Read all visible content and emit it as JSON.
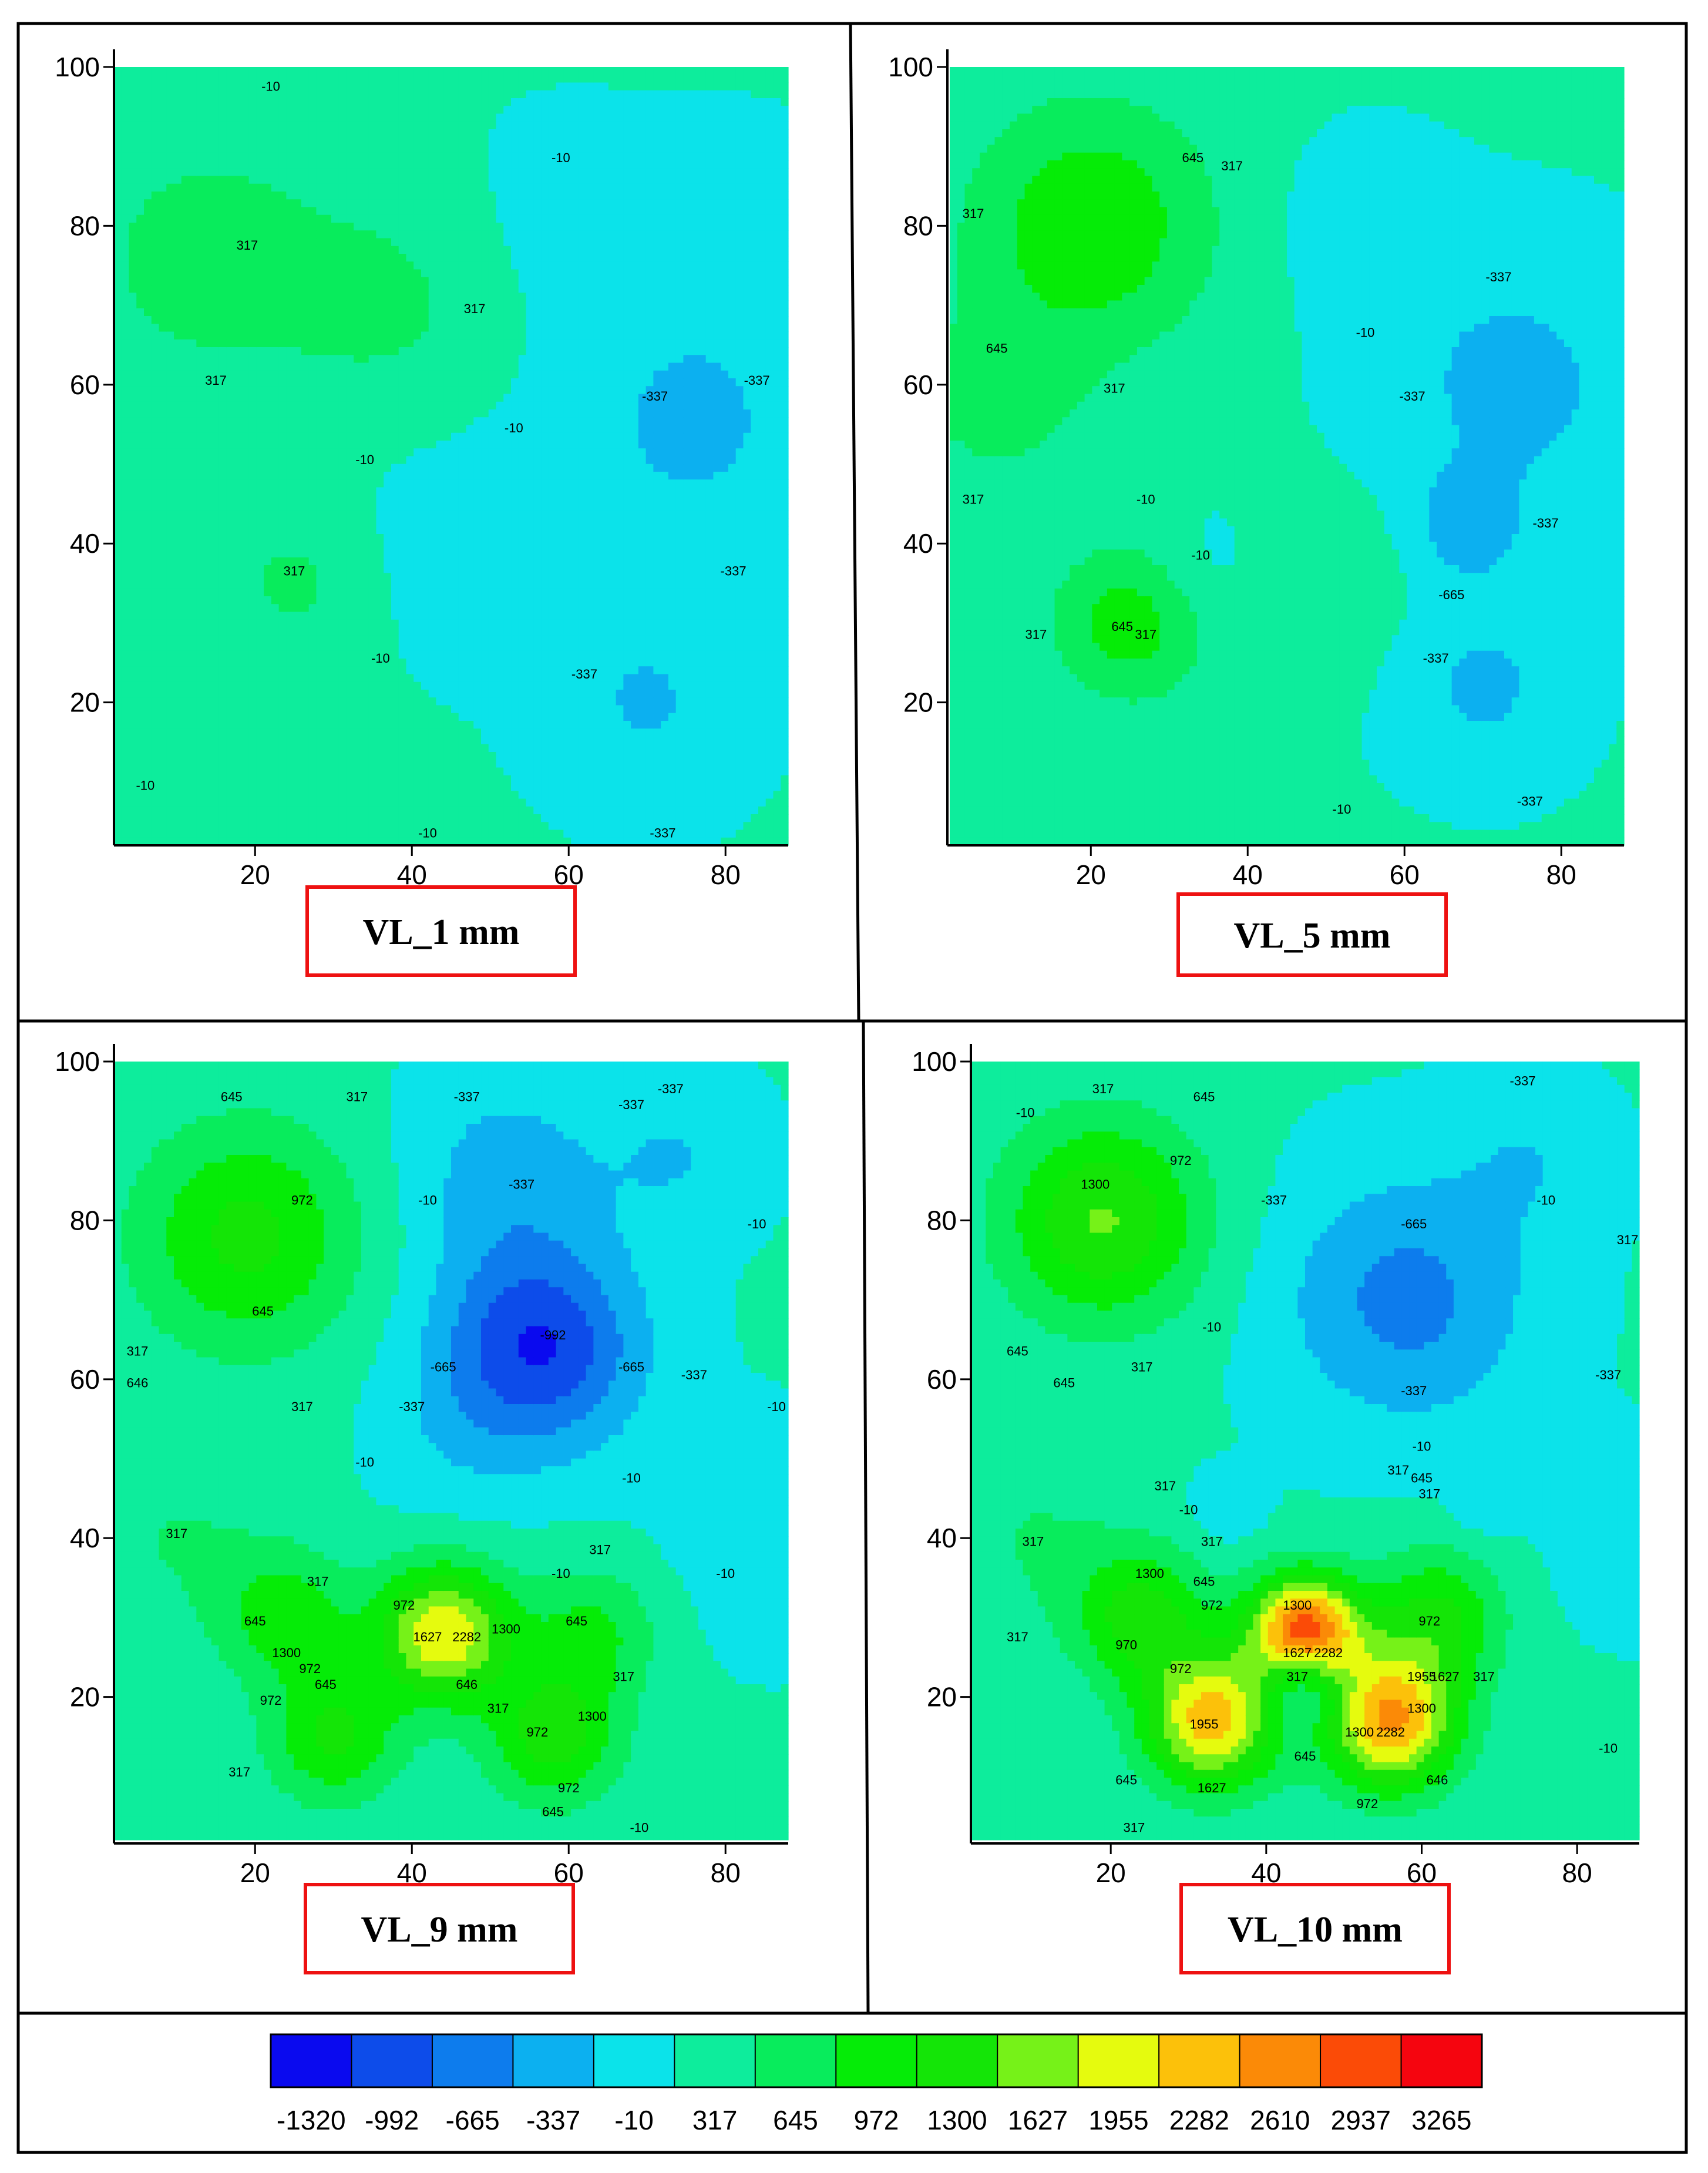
{
  "chart_data": [
    {
      "type": "heatmap",
      "title": "VL_1 mm",
      "x_ticks": [
        20,
        40,
        60,
        80
      ],
      "y_ticks": [
        20,
        40,
        60,
        80,
        100
      ],
      "xlim": [
        2,
        88
      ],
      "ylim": [
        2,
        100
      ],
      "contour_labels": [
        {
          "text": "-10",
          "x": 22,
          "y": 97
        },
        {
          "text": "-10",
          "x": 59,
          "y": 88
        },
        {
          "text": "317",
          "x": 19,
          "y": 77
        },
        {
          "text": "317",
          "x": 48,
          "y": 69
        },
        {
          "text": "317",
          "x": 15,
          "y": 60
        },
        {
          "text": "-337",
          "x": 71,
          "y": 58
        },
        {
          "text": "-337",
          "x": 84,
          "y": 60
        },
        {
          "text": "-10",
          "x": 53,
          "y": 54
        },
        {
          "text": "-10",
          "x": 34,
          "y": 50
        },
        {
          "text": "317",
          "x": 25,
          "y": 36
        },
        {
          "text": "-337",
          "x": 81,
          "y": 36
        },
        {
          "text": "-10",
          "x": 36,
          "y": 25
        },
        {
          "text": "-337",
          "x": 62,
          "y": 23
        },
        {
          "text": "-10",
          "x": 6,
          "y": 9
        },
        {
          "text": "-10",
          "x": 42,
          "y": 3
        },
        {
          "text": "-337",
          "x": 72,
          "y": 3
        }
      ]
    },
    {
      "type": "heatmap",
      "title": "VL_5 mm",
      "x_ticks": [
        20,
        40,
        60,
        80
      ],
      "y_ticks": [
        20,
        40,
        60,
        80,
        100
      ],
      "xlim": [
        2,
        88
      ],
      "ylim": [
        2,
        100
      ],
      "contour_labels": [
        {
          "text": "645",
          "x": 33,
          "y": 88
        },
        {
          "text": "317",
          "x": 38,
          "y": 87
        },
        {
          "text": "317",
          "x": 5,
          "y": 81
        },
        {
          "text": "-337",
          "x": 72,
          "y": 73
        },
        {
          "text": "-10",
          "x": 55,
          "y": 66
        },
        {
          "text": "645",
          "x": 8,
          "y": 64
        },
        {
          "text": "317",
          "x": 23,
          "y": 59
        },
        {
          "text": "-337",
          "x": 61,
          "y": 58
        },
        {
          "text": "-10",
          "x": 27,
          "y": 45
        },
        {
          "text": "-10",
          "x": 34,
          "y": 38
        },
        {
          "text": "-337",
          "x": 78,
          "y": 42
        },
        {
          "text": "-665",
          "x": 66,
          "y": 33
        },
        {
          "text": "317",
          "x": 5,
          "y": 45
        },
        {
          "text": "317",
          "x": 13,
          "y": 28
        },
        {
          "text": "645",
          "x": 24,
          "y": 29
        },
        {
          "text": "317",
          "x": 27,
          "y": 28
        },
        {
          "text": "-337",
          "x": 64,
          "y": 25
        },
        {
          "text": "-10",
          "x": 52,
          "y": 6
        },
        {
          "text": "-337",
          "x": 76,
          "y": 7
        }
      ]
    },
    {
      "type": "heatmap",
      "title": "VL_9 mm",
      "x_ticks": [
        20,
        40,
        60,
        80
      ],
      "y_ticks": [
        20,
        40,
        60,
        80,
        100
      ],
      "xlim": [
        2,
        88
      ],
      "ylim": [
        2,
        100
      ],
      "contour_labels": [
        {
          "text": "645",
          "x": 17,
          "y": 95
        },
        {
          "text": "317",
          "x": 33,
          "y": 95
        },
        {
          "text": "-337",
          "x": 47,
          "y": 95
        },
        {
          "text": "-337",
          "x": 68,
          "y": 94
        },
        {
          "text": "-337",
          "x": 73,
          "y": 96
        },
        {
          "text": "972",
          "x": 26,
          "y": 82
        },
        {
          "text": "-337",
          "x": 54,
          "y": 84
        },
        {
          "text": "-10",
          "x": 42,
          "y": 82
        },
        {
          "text": "-10",
          "x": 84,
          "y": 79
        },
        {
          "text": "645",
          "x": 21,
          "y": 68
        },
        {
          "text": "-992",
          "x": 58,
          "y": 65
        },
        {
          "text": "-665",
          "x": 68,
          "y": 61
        },
        {
          "text": "317",
          "x": 5,
          "y": 63
        },
        {
          "text": "646",
          "x": 5,
          "y": 59
        },
        {
          "text": "-665",
          "x": 44,
          "y": 61
        },
        {
          "text": "-337",
          "x": 40,
          "y": 56
        },
        {
          "text": "-337",
          "x": 76,
          "y": 60
        },
        {
          "text": "317",
          "x": 26,
          "y": 56
        },
        {
          "text": "-10",
          "x": 89,
          "y": 56
        },
        {
          "text": "-10",
          "x": 34,
          "y": 49
        },
        {
          "text": "-10",
          "x": 68,
          "y": 47
        },
        {
          "text": "317",
          "x": 10,
          "y": 40
        },
        {
          "text": "317",
          "x": 64,
          "y": 38
        },
        {
          "text": "-10",
          "x": 59,
          "y": 35
        },
        {
          "text": "317",
          "x": 28,
          "y": 34
        },
        {
          "text": "-10",
          "x": 80,
          "y": 35
        },
        {
          "text": "972",
          "x": 39,
          "y": 31
        },
        {
          "text": "645",
          "x": 20,
          "y": 29
        },
        {
          "text": "645",
          "x": 61,
          "y": 29
        },
        {
          "text": "1627",
          "x": 42,
          "y": 27
        },
        {
          "text": "2282",
          "x": 47,
          "y": 27
        },
        {
          "text": "1300",
          "x": 52,
          "y": 28
        },
        {
          "text": "1300",
          "x": 24,
          "y": 25
        },
        {
          "text": "972",
          "x": 27,
          "y": 23
        },
        {
          "text": "645",
          "x": 29,
          "y": 21
        },
        {
          "text": "646",
          "x": 47,
          "y": 21
        },
        {
          "text": "972",
          "x": 22,
          "y": 19
        },
        {
          "text": "317",
          "x": 51,
          "y": 18
        },
        {
          "text": "972",
          "x": 56,
          "y": 15
        },
        {
          "text": "1300",
          "x": 63,
          "y": 17
        },
        {
          "text": "317",
          "x": 67,
          "y": 22
        },
        {
          "text": "317",
          "x": 18,
          "y": 10
        },
        {
          "text": "972",
          "x": 60,
          "y": 8
        },
        {
          "text": "645",
          "x": 58,
          "y": 5
        },
        {
          "text": "-10",
          "x": 69,
          "y": 3
        }
      ]
    },
    {
      "type": "heatmap",
      "title": "VL_10 mm",
      "x_ticks": [
        20,
        40,
        60,
        80
      ],
      "y_ticks": [
        20,
        40,
        60,
        80,
        100
      ],
      "xlim": [
        2,
        88
      ],
      "ylim": [
        2,
        100
      ],
      "contour_labels": [
        {
          "text": "-10",
          "x": 9,
          "y": 93
        },
        {
          "text": "317",
          "x": 19,
          "y": 96
        },
        {
          "text": "645",
          "x": 32,
          "y": 95
        },
        {
          "text": "-337",
          "x": 73,
          "y": 97
        },
        {
          "text": "1300",
          "x": 18,
          "y": 84
        },
        {
          "text": "972",
          "x": 29,
          "y": 87
        },
        {
          "text": "-337",
          "x": 41,
          "y": 82
        },
        {
          "text": "-665",
          "x": 59,
          "y": 79
        },
        {
          "text": "-10",
          "x": 76,
          "y": 82
        },
        {
          "text": "317",
          "x": 89,
          "y": 77
        },
        {
          "text": "-10",
          "x": 33,
          "y": 66
        },
        {
          "text": "645",
          "x": 8,
          "y": 63
        },
        {
          "text": "317",
          "x": 24,
          "y": 61
        },
        {
          "text": "645",
          "x": 14,
          "y": 59
        },
        {
          "text": "-337",
          "x": 59,
          "y": 58
        },
        {
          "text": "-337",
          "x": 84,
          "y": 60
        },
        {
          "text": "-10",
          "x": 60,
          "y": 51
        },
        {
          "text": "317",
          "x": 27,
          "y": 46
        },
        {
          "text": "-10",
          "x": 30,
          "y": 43
        },
        {
          "text": "317",
          "x": 33,
          "y": 39
        },
        {
          "text": "317",
          "x": 57,
          "y": 48
        },
        {
          "text": "645",
          "x": 60,
          "y": 47
        },
        {
          "text": "317",
          "x": 61,
          "y": 45
        },
        {
          "text": "317",
          "x": 10,
          "y": 39
        },
        {
          "text": "1300",
          "x": 25,
          "y": 35
        },
        {
          "text": "645",
          "x": 32,
          "y": 34
        },
        {
          "text": "972",
          "x": 33,
          "y": 31
        },
        {
          "text": "1300",
          "x": 44,
          "y": 31
        },
        {
          "text": "972",
          "x": 61,
          "y": 29
        },
        {
          "text": "317",
          "x": 8,
          "y": 27
        },
        {
          "text": "970",
          "x": 22,
          "y": 26
        },
        {
          "text": "1627",
          "x": 44,
          "y": 25
        },
        {
          "text": "2282",
          "x": 48,
          "y": 25
        },
        {
          "text": "317",
          "x": 44,
          "y": 22
        },
        {
          "text": "972",
          "x": 29,
          "y": 23
        },
        {
          "text": "1955",
          "x": 60,
          "y": 22
        },
        {
          "text": "1627",
          "x": 63,
          "y": 22
        },
        {
          "text": "1300",
          "x": 60,
          "y": 18
        },
        {
          "text": "317",
          "x": 68,
          "y": 22
        },
        {
          "text": "1955",
          "x": 32,
          "y": 16
        },
        {
          "text": "1300",
          "x": 52,
          "y": 15
        },
        {
          "text": "2282",
          "x": 56,
          "y": 15
        },
        {
          "text": "645",
          "x": 45,
          "y": 12
        },
        {
          "text": "645",
          "x": 22,
          "y": 9
        },
        {
          "text": "1627",
          "x": 33,
          "y": 8
        },
        {
          "text": "646",
          "x": 62,
          "y": 9
        },
        {
          "text": "972",
          "x": 53,
          "y": 6
        },
        {
          "text": "317",
          "x": 23,
          "y": 3
        },
        {
          "text": "-10",
          "x": 84,
          "y": 13
        }
      ]
    }
  ],
  "legend": {
    "labels": [
      "-1320",
      "-992",
      "-665",
      "-337",
      "-10",
      "317",
      "645",
      "972",
      "1300",
      "1627",
      "1955",
      "2282",
      "2610",
      "2937",
      "3265"
    ],
    "colors": [
      "#0a0aef",
      "#0d4cea",
      "#0d7ced",
      "#0cb0f0",
      "#0be3ea",
      "#0ded9c",
      "#08ec5c",
      "#05ec07",
      "#14e507",
      "#76f218",
      "#e5fb0e",
      "#fcc10a",
      "#fb8a07",
      "#fb4b07",
      "#f5050f"
    ]
  }
}
